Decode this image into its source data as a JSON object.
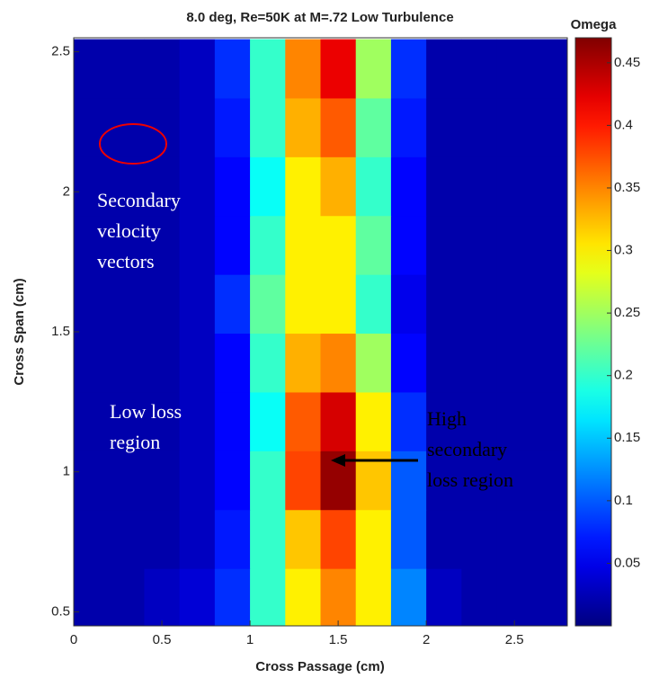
{
  "chart_data": {
    "type": "contour",
    "title": "8.0 deg, Re=50K at M=.72 Low Turbulence",
    "xlabel": "Cross Passage (cm)",
    "ylabel": "Cross Span (cm)",
    "colorbar_label": "Omega",
    "x": [
      0.1,
      0.3,
      0.5,
      0.7,
      0.9,
      1.1,
      1.3,
      1.5,
      1.7,
      1.9,
      2.1,
      2.3,
      2.5,
      2.7
    ],
    "y": [
      0.55,
      0.76,
      0.97,
      1.18,
      1.39,
      1.6,
      1.81,
      2.02,
      2.23,
      2.44
    ],
    "z": [
      [
        0.02,
        0.02,
        0.03,
        0.04,
        0.08,
        0.2,
        0.3,
        0.35,
        0.3,
        0.12,
        0.03,
        0.02,
        0.02,
        0.02
      ],
      [
        0.02,
        0.02,
        0.02,
        0.03,
        0.07,
        0.2,
        0.32,
        0.38,
        0.3,
        0.1,
        0.02,
        0.02,
        0.02,
        0.02
      ],
      [
        0.02,
        0.02,
        0.02,
        0.03,
        0.06,
        0.2,
        0.38,
        0.46,
        0.32,
        0.1,
        0.02,
        0.02,
        0.02,
        0.02
      ],
      [
        0.02,
        0.02,
        0.02,
        0.03,
        0.06,
        0.18,
        0.37,
        0.43,
        0.3,
        0.08,
        0.02,
        0.02,
        0.02,
        0.02
      ],
      [
        0.02,
        0.02,
        0.02,
        0.03,
        0.06,
        0.2,
        0.33,
        0.35,
        0.25,
        0.06,
        0.02,
        0.02,
        0.02,
        0.02
      ],
      [
        0.02,
        0.02,
        0.02,
        0.03,
        0.08,
        0.22,
        0.3,
        0.3,
        0.2,
        0.05,
        0.02,
        0.02,
        0.02,
        0.02
      ],
      [
        0.02,
        0.02,
        0.02,
        0.03,
        0.06,
        0.2,
        0.3,
        0.3,
        0.22,
        0.06,
        0.02,
        0.02,
        0.02,
        0.02
      ],
      [
        0.02,
        0.02,
        0.02,
        0.03,
        0.06,
        0.18,
        0.3,
        0.33,
        0.2,
        0.06,
        0.02,
        0.02,
        0.02,
        0.02
      ],
      [
        0.02,
        0.02,
        0.02,
        0.03,
        0.07,
        0.2,
        0.33,
        0.37,
        0.22,
        0.07,
        0.02,
        0.02,
        0.02,
        0.02
      ],
      [
        0.02,
        0.02,
        0.02,
        0.03,
        0.08,
        0.2,
        0.35,
        0.42,
        0.25,
        0.08,
        0.02,
        0.02,
        0.02,
        0.02
      ]
    ],
    "xlim": [
      0,
      2.8
    ],
    "ylim": [
      0.45,
      2.55
    ],
    "xticks": [
      0,
      0.5,
      1,
      1.5,
      2,
      2.5
    ],
    "yticks": [
      0.5,
      1,
      1.5,
      2,
      2.5
    ],
    "zlim": [
      0,
      0.47
    ],
    "zticks": [
      0.05,
      0.1,
      0.15,
      0.2,
      0.25,
      0.3,
      0.35,
      0.4,
      0.45
    ],
    "colormap": "jet",
    "annotations": [
      {
        "lines": [
          "Secondary",
          "velocity",
          "vectors"
        ],
        "color": "#ffffff"
      },
      {
        "lines": [
          "Low loss",
          "region"
        ],
        "color": "#ffffff"
      },
      {
        "lines": [
          "High",
          "secondary",
          "loss region"
        ],
        "color": "#000000"
      }
    ]
  }
}
